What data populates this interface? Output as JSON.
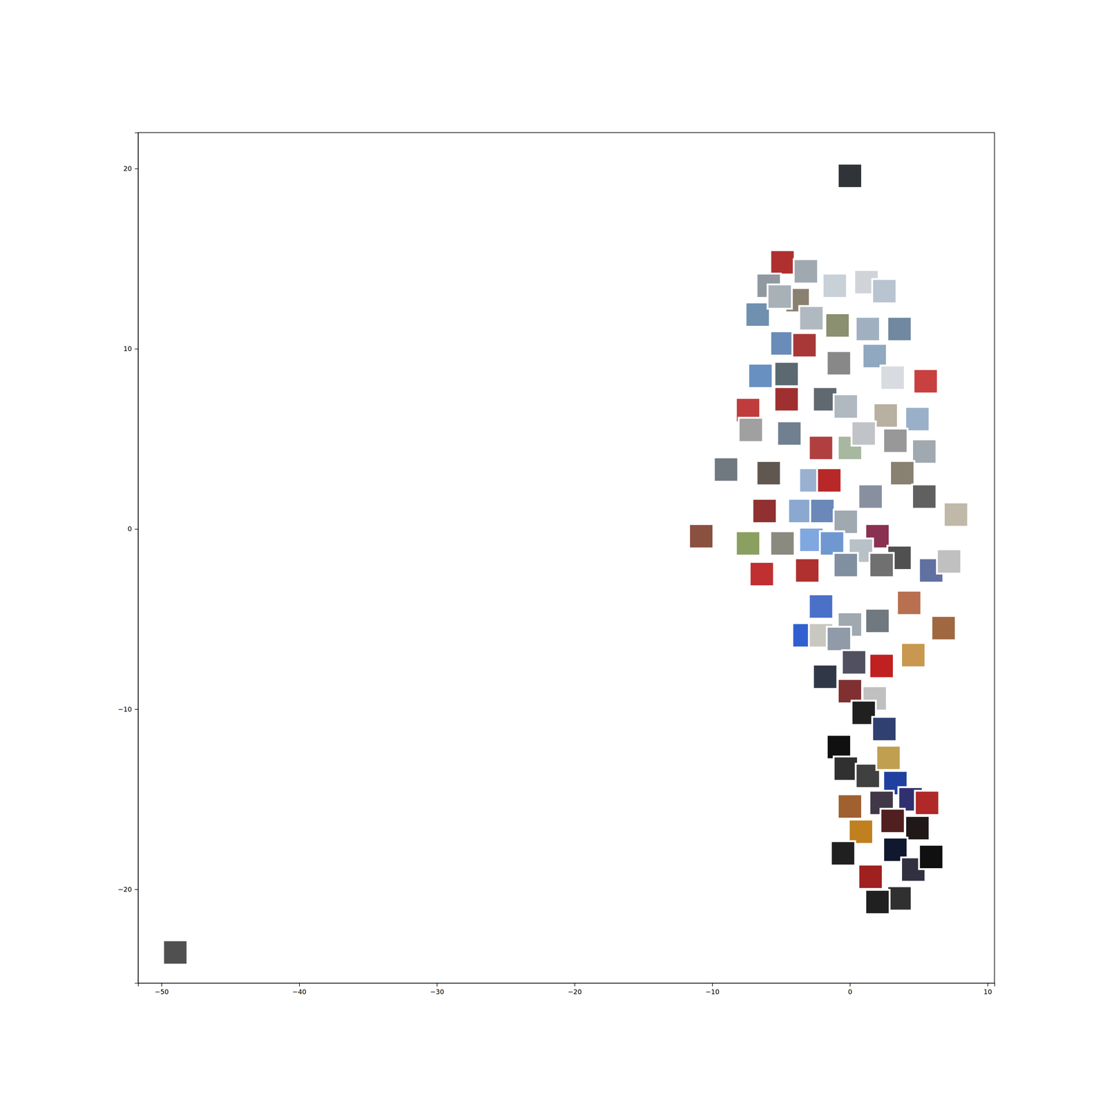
{
  "chart_data": {
    "type": "scatter",
    "marker": "square",
    "x": [
      0,
      -10.8,
      -49,
      -4.9,
      -3.2,
      -1.1,
      1.2,
      2.5,
      -5.9,
      -3.8,
      -6.7,
      -5.1,
      -2.8,
      -0.9,
      1.3,
      3.6,
      -4.9,
      -3.3,
      -0.8,
      1.8,
      3.1,
      5.5,
      -6.5,
      -4.6,
      -7.4,
      -4.6,
      -1.8,
      -0.3,
      2.6,
      4.9,
      -7.2,
      -4.4,
      -2.1,
      0,
      1.0,
      3.3,
      5.4,
      -9.0,
      -5.9,
      -2.8,
      -1.5,
      1.5,
      3.8,
      5.4,
      7.7,
      -6.2,
      -3.6,
      -2.0,
      -0.3,
      2.0,
      3.6,
      5.9,
      7.2,
      -7.4,
      -4.9,
      -2.8,
      -1.3,
      0.8,
      -6.4,
      -3.1,
      -0.3,
      2.3,
      -2.1,
      0,
      2.0,
      4.3,
      6.8,
      -3.3,
      -2.1,
      -0.8,
      4.6,
      2.3,
      0.3,
      -1.8,
      0,
      1.8,
      1.0,
      2.5,
      -0.8,
      -0.3,
      1.3,
      2.8,
      3.3,
      0,
      2.3,
      4.4,
      5.6,
      0.8,
      3.1,
      4.9,
      -0.5,
      3.3,
      4.6,
      1.5,
      3.6,
      5.9,
      2.0
    ],
    "y": [
      19.6,
      -0.4,
      -23.5,
      14.8,
      14.3,
      13.5,
      13.7,
      13.2,
      13.5,
      12.7,
      11.9,
      12.9,
      11.7,
      11.3,
      11.1,
      11.1,
      10.3,
      10.2,
      9.2,
      9.6,
      8.4,
      8.2,
      8.5,
      8.6,
      6.6,
      7.2,
      7.2,
      6.8,
      6.3,
      6.1,
      5.5,
      5.3,
      4.5,
      4.5,
      5.3,
      4.9,
      4.3,
      3.3,
      3.1,
      2.7,
      2.7,
      1.8,
      3.1,
      1.8,
      0.8,
      1.0,
      1.0,
      1.0,
      0.4,
      -0.4,
      -1.6,
      -2.3,
      -1.8,
      -0.8,
      -0.8,
      -0.6,
      -0.8,
      -1.2,
      -2.5,
      -2.3,
      -2.0,
      -2.0,
      -4.3,
      -5.3,
      -5.1,
      -4.1,
      -5.5,
      -5.9,
      -5.9,
      -6.1,
      -7.0,
      -7.6,
      -7.4,
      -8.2,
      -9.0,
      -9.4,
      -10.2,
      -11.1,
      -12.1,
      -13.3,
      -13.7,
      -12.7,
      -14.1,
      -15.4,
      -15.2,
      -15.0,
      -15.2,
      -16.8,
      -16.2,
      -16.6,
      -18.0,
      -17.8,
      -18.9,
      -19.3,
      -20.5,
      -18.2,
      -20.7
    ],
    "colors": [
      "#303438",
      "#8a5040",
      "#505050",
      "#b03030",
      "#a0a8b0",
      "#c8d0d8",
      "#d0d4d8",
      "#b8c4d0",
      "#9098a0",
      "#8a8070",
      "#7090b0",
      "#a8b0b8",
      "#b0b8c0",
      "#8a9070",
      "#a0b0c0",
      "#7088a0",
      "#6a8cb8",
      "#a83838",
      "#888888",
      "#90a8c0",
      "#d8dce0",
      "#c84040",
      "#6890c0",
      "#5a6a70",
      "#c03c3c",
      "#a03030",
      "#606870",
      "#b0b8c0",
      "#b8b0a0",
      "#9ab0c8",
      "#a0a0a0",
      "#708090",
      "#b04040",
      "#a8b8a0",
      "#c0c4c8",
      "#989898",
      "#a0a8b0",
      "#707880",
      "#605850",
      "#9ab0d0",
      "#b82828",
      "#8890a0",
      "#888070",
      "#606060",
      "#c0b8a8",
      "#903030",
      "#8aa8d0",
      "#6a88b8",
      "#a0a8b0",
      "#8a3050",
      "#505050",
      "#6070a0",
      "#c0c0c0",
      "#8aa060",
      "#8a8a80",
      "#80a8e0",
      "#7098d0",
      "#b8c0c8",
      "#c03030",
      "#b03030",
      "#8090a0",
      "#707070",
      "#4a70c8",
      "#a0a8b0",
      "#707880",
      "#b87050",
      "#a06840",
      "#3060d0",
      "#c8c8c0",
      "#909aa8",
      "#c89850",
      "#c02020",
      "#505060",
      "#303848",
      "#803030",
      "#c0c0c0",
      "#202020",
      "#304070",
      "#101010",
      "#303030",
      "#404040",
      "#c0a050",
      "#2040a0",
      "#a06030",
      "#403848",
      "#303070",
      "#b02828",
      "#c08020",
      "#502020",
      "#201818",
      "#202020",
      "#101830",
      "#303040",
      "#a02020",
      "#303030",
      "#101010",
      "#202020"
    ],
    "xlim": [
      -51.7,
      10.5
    ],
    "ylim": [
      -25.2,
      22.0
    ],
    "xticks": [
      {
        "value": -50,
        "label": "−50"
      },
      {
        "value": -40,
        "label": "−40"
      },
      {
        "value": -30,
        "label": "−30"
      },
      {
        "value": -20,
        "label": "−20"
      },
      {
        "value": -10,
        "label": "−10"
      },
      0,
      10
    ],
    "yticks": [
      {
        "value": -20,
        "label": "−20"
      },
      {
        "value": -10,
        "label": "−10"
      },
      0,
      10,
      20
    ],
    "grid": false
  }
}
